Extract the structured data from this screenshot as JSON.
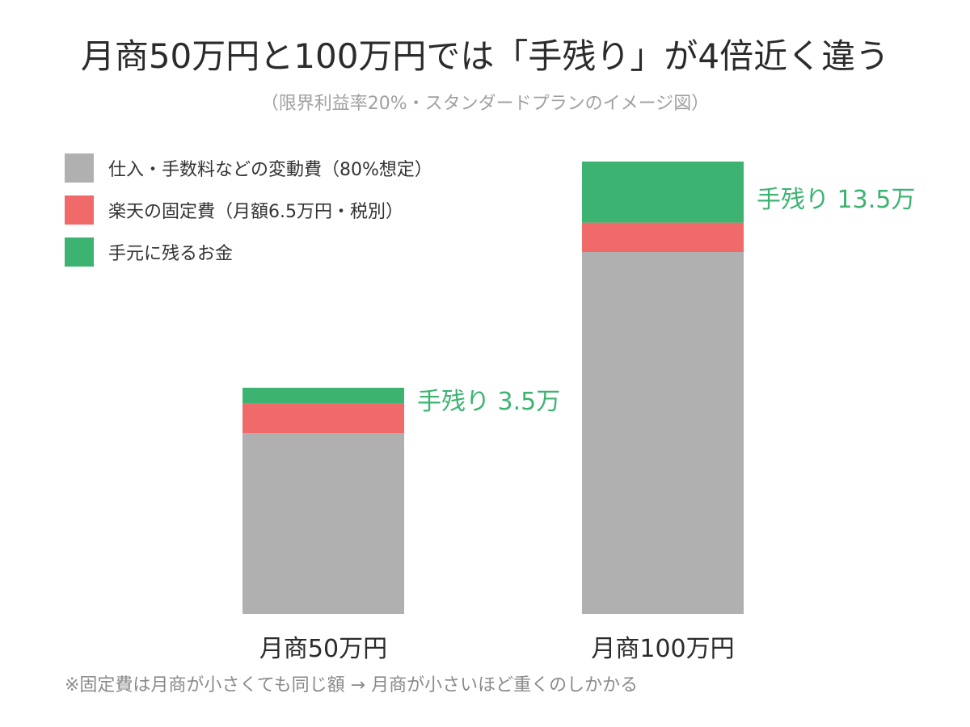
{
  "title": "月商50万円と100万円では「手残り」が4倍近く違う",
  "subtitle": "（限界利益率20%・スタンダードプランのイメージ図）",
  "note": "※固定費は月商が小さくても同じ額 → 月商が小さいほど重くのしかかる",
  "colors": {
    "variable": "#b0b0b0",
    "fixed": "#f06a6a",
    "profit": "#3cb371",
    "annotation": "#3cb371"
  },
  "chart_data": {
    "type": "bar",
    "stacked": true,
    "categories": [
      "月商50万円",
      "月商100万円"
    ],
    "series": [
      {
        "name": "仕入・手数料などの変動費（80%想定）",
        "values": [
          40,
          80
        ]
      },
      {
        "name": "楽天の固定費（月額6.5万円・税別）",
        "values": [
          6.5,
          6.5
        ]
      },
      {
        "name": "手元に残るお金",
        "values": [
          3.5,
          13.5
        ]
      }
    ],
    "annotations": [
      "手残り 3.5万",
      "手残り 13.5万"
    ],
    "ylim": [
      0,
      100
    ],
    "grid": false,
    "legend": "top-left"
  }
}
